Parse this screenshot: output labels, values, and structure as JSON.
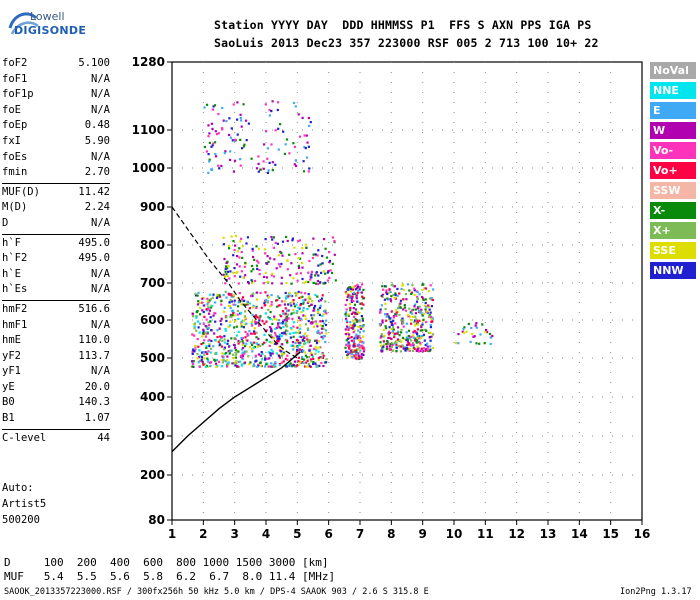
{
  "logo": {
    "line1": "Lowell",
    "line2": "DIGISONDE"
  },
  "header": {
    "line1": "Station YYYY DAY  DDD HHMMSS P1  FFS S AXN PPS IGA PS",
    "line2": "SaoLuis 2013 Dec23 357 223000 RSF 005 2 713 100 10+ 22"
  },
  "params": [
    {
      "name": "foF2",
      "value": "5.100"
    },
    {
      "name": "foF1",
      "value": "N/A"
    },
    {
      "name": "foF1p",
      "value": "N/A"
    },
    {
      "name": "foE",
      "value": "N/A"
    },
    {
      "name": "foEp",
      "value": "0.48"
    },
    {
      "name": "fxI",
      "value": "5.90"
    },
    {
      "name": "foEs",
      "value": "N/A"
    },
    {
      "name": "fmin",
      "value": "2.70"
    },
    {
      "name": "MUF(D)",
      "value": "11.42"
    },
    {
      "name": "M(D)",
      "value": "2.24"
    },
    {
      "name": "D",
      "value": "N/A"
    },
    {
      "name": "h`F",
      "value": "495.0"
    },
    {
      "name": "h`F2",
      "value": "495.0"
    },
    {
      "name": "h`E",
      "value": "N/A"
    },
    {
      "name": "h`Es",
      "value": "N/A"
    },
    {
      "name": "hmF2",
      "value": "516.6"
    },
    {
      "name": "hmF1",
      "value": "N/A"
    },
    {
      "name": "hmE",
      "value": "110.0"
    },
    {
      "name": "yF2",
      "value": "113.7"
    },
    {
      "name": "yF1",
      "value": "N/A"
    },
    {
      "name": "yE",
      "value": "20.0"
    },
    {
      "name": "B0",
      "value": "140.3"
    },
    {
      "name": "B1",
      "value": "1.07"
    },
    {
      "name": "C-level",
      "value": "44"
    }
  ],
  "auto": {
    "line1": "Auto:",
    "line2": "Artist5",
    "line3": "500200"
  },
  "legend": [
    {
      "label": "NoVal",
      "color": "#a9a9a9"
    },
    {
      "label": "NNE",
      "color": "#00e5ee"
    },
    {
      "label": "E",
      "color": "#3fa9f5"
    },
    {
      "label": "W",
      "color": "#b000b0"
    },
    {
      "label": "Vo-",
      "color": "#ff33bb"
    },
    {
      "label": "Vo+",
      "color": "#ff0044"
    },
    {
      "label": "SSW",
      "color": "#f4b6a6"
    },
    {
      "label": "X-",
      "color": "#0a8a0a"
    },
    {
      "label": "X+",
      "color": "#7dbb57"
    },
    {
      "label": "SSE",
      "color": "#dddd00"
    },
    {
      "label": "NNW",
      "color": "#2020d0"
    }
  ],
  "footer": {
    "d_row": "D     100  200  400  600  800 1000 1500 3000 [km]",
    "muf_row": "MUF   5.4  5.5  5.6  5.8  6.2  6.7  8.0 11.4 [MHz]",
    "status_left": "SAOOK_2013357223000.RSF / 300fx256h 50 kHz 5.0 km / DPS-4 SAAOK 903 / 2.6 S 315.8 E",
    "status_right": "Ion2Png 1.3.17"
  },
  "chart_data": {
    "type": "scatter",
    "x_ticks": [
      "1",
      "2",
      "3",
      "4",
      "5",
      "6",
      "7",
      "8",
      "9",
      "10",
      "11",
      "12",
      "13",
      "14",
      "15",
      "16"
    ],
    "y_ticks": [
      "80",
      "200",
      "300",
      "400",
      "500",
      "600",
      "700",
      "800",
      "900",
      "1000",
      "1100",
      "1280"
    ],
    "xlim": [
      1,
      16
    ],
    "grid": true,
    "legend_placement": "right",
    "echo_regions": [
      {
        "name": "F2 trace",
        "xmin": 1.6,
        "xmax": 5.9,
        "ymin": 480,
        "ymax": 680,
        "density": 900,
        "colors": [
          "#dddd00",
          "#0a8a0a",
          "#ff33bb",
          "#b000b0",
          "#2020d0",
          "#ff0044",
          "#3fa9f5",
          "#7dbb57",
          "#00e5ee"
        ]
      },
      {
        "name": "F2 band 6-7 MHz",
        "xmin": 6.5,
        "xmax": 7.1,
        "ymin": 500,
        "ymax": 700,
        "density": 220,
        "colors": [
          "#dddd00",
          "#ff33bb",
          "#b000b0",
          "#2020d0",
          "#0a8a0a",
          "#ff0044",
          "#3fa9f5"
        ]
      },
      {
        "name": "F2 band 7.6-9.3 MHz",
        "xmin": 7.6,
        "xmax": 9.3,
        "ymin": 520,
        "ymax": 700,
        "density": 380,
        "colors": [
          "#dddd00",
          "#0a8a0a",
          "#ff33bb",
          "#b000b0",
          "#2020d0",
          "#ff0044",
          "#3fa9f5",
          "#7dbb57"
        ]
      },
      {
        "name": "scattered 10-11 MHz",
        "xmin": 10.0,
        "xmax": 11.2,
        "ymin": 540,
        "ymax": 600,
        "density": 30,
        "colors": [
          "#dddd00",
          "#0a8a0a",
          "#b000b0",
          "#3fa9f5"
        ]
      },
      {
        "name": "second hop",
        "xmin": 2.6,
        "xmax": 6.2,
        "ymin": 700,
        "ymax": 830,
        "density": 200,
        "colors": [
          "#2020d0",
          "#b000b0",
          "#dddd00",
          "#ff33bb",
          "#0a8a0a"
        ]
      },
      {
        "name": "third hop",
        "xmin": 2.0,
        "xmax": 5.4,
        "ymin": 990,
        "ymax": 1180,
        "density": 130,
        "colors": [
          "#b000b0",
          "#ff33bb",
          "#0a8a0a",
          "#3fa9f5",
          "#2020d0"
        ]
      }
    ],
    "profile_curve": [
      [
        1.0,
        260
      ],
      [
        1.5,
        300
      ],
      [
        2.0,
        335
      ],
      [
        2.5,
        370
      ],
      [
        3.0,
        400
      ],
      [
        3.5,
        425
      ],
      [
        4.0,
        450
      ],
      [
        4.5,
        475
      ],
      [
        4.8,
        495
      ],
      [
        5.1,
        516.6
      ]
    ],
    "virtual_height_dashed": [
      [
        1.0,
        900
      ],
      [
        1.6,
        830
      ],
      [
        2.2,
        760
      ],
      [
        2.8,
        700
      ],
      [
        3.2,
        650
      ],
      [
        3.7,
        600
      ],
      [
        4.2,
        550
      ],
      [
        4.6,
        520
      ],
      [
        5.0,
        500
      ]
    ]
  }
}
